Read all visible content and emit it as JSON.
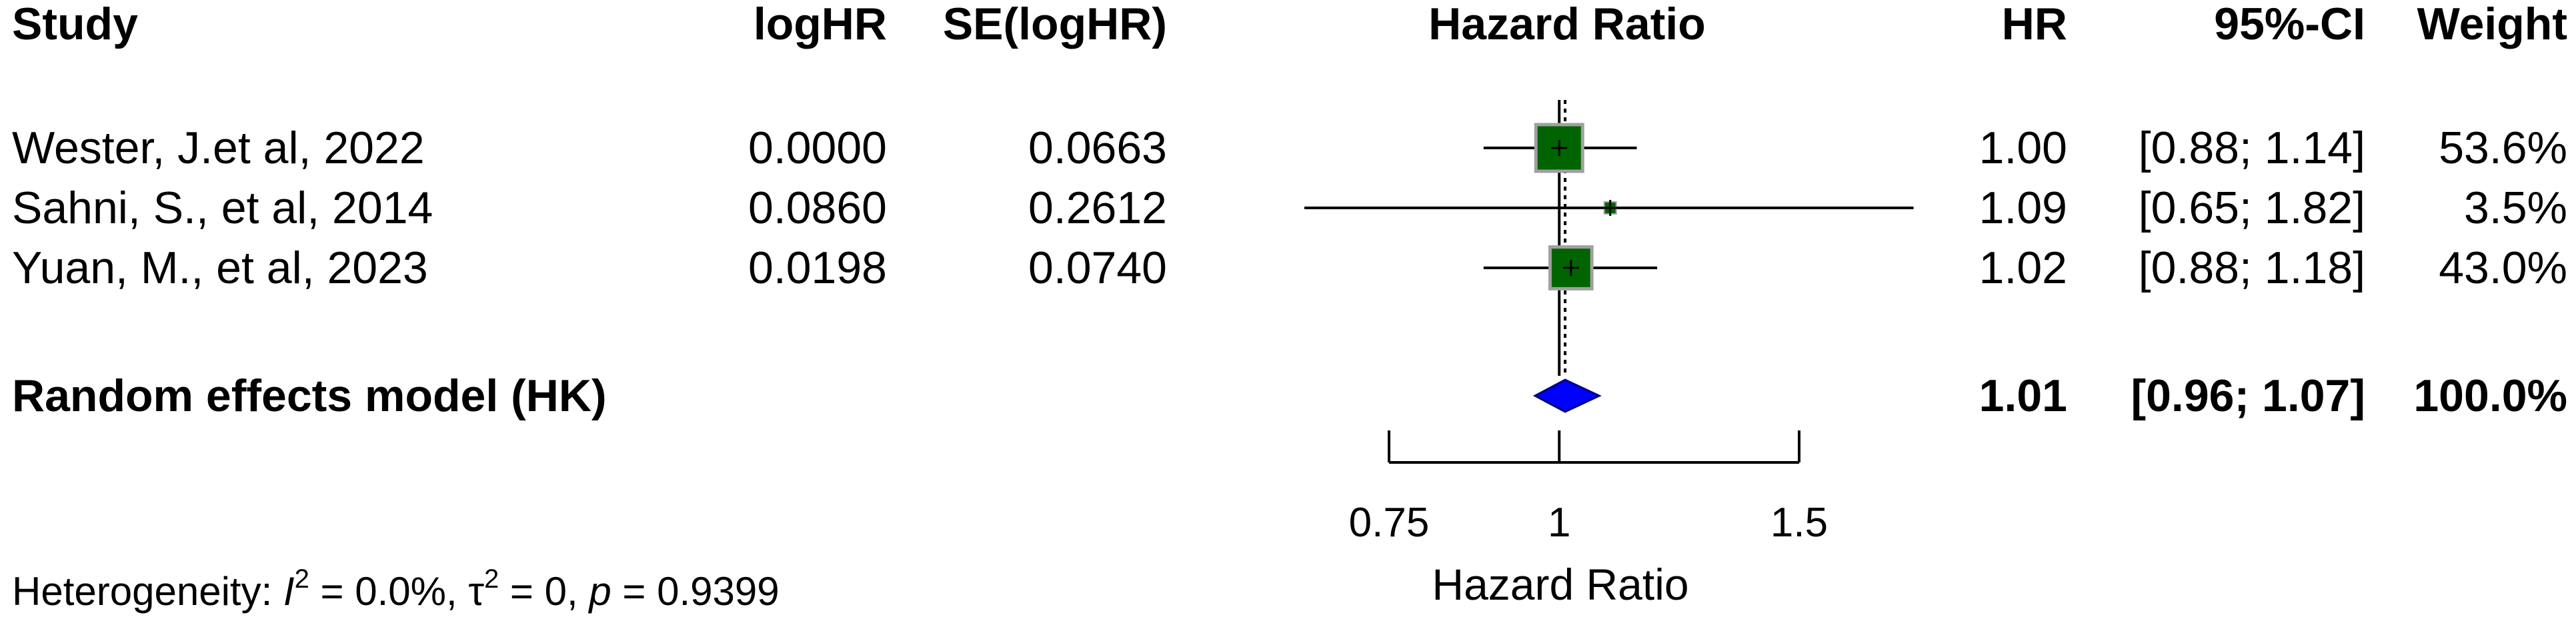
{
  "headers": {
    "study": "Study",
    "loghr": "logHR",
    "se": "SE(logHR)",
    "plot": "Hazard Ratio",
    "hr": "HR",
    "ci": "95%-CI",
    "weight": "Weight"
  },
  "studies": [
    {
      "name": "Wester, J.et al, 2022",
      "loghr": "0.0000",
      "se": "0.0663",
      "hr_text": "1.00",
      "ci_text": "[0.88; 1.14]",
      "weight_text": "53.6%"
    },
    {
      "name": "Sahni, S., et al, 2014",
      "loghr": "0.0860",
      "se": "0.2612",
      "hr_text": "1.09",
      "ci_text": "[0.65; 1.82]",
      "weight_text": "3.5%"
    },
    {
      "name": "Yuan, M., et al, 2023",
      "loghr": "0.0198",
      "se": "0.0740",
      "hr_text": "1.02",
      "ci_text": "[0.88; 1.18]",
      "weight_text": "43.0%"
    }
  ],
  "summary": {
    "label": "Random effects model (HK)",
    "hr_text": "1.01",
    "ci_text": "[0.96; 1.07]",
    "weight_text": "100.0%"
  },
  "heterogeneity": {
    "prefix": "Heterogeneity: ",
    "i2_sym": "I",
    "i2_exp": "2",
    "i2_val": " = 0.0%, ",
    "tau_sym": "τ",
    "tau_exp": "2",
    "tau_val": " = 0, ",
    "p_sym": "p",
    "p_val": " = 0.9399"
  },
  "chart_data": {
    "type": "forest",
    "xlabel": "Hazard Ratio",
    "x_scale": "log",
    "xlim": [
      0.75,
      1.5
    ],
    "ticks": [
      0.75,
      1,
      1.5
    ],
    "tick_labels": [
      "0.75",
      "1",
      "1.5"
    ],
    "reference_line": 1,
    "summary_line": 1.01,
    "studies": [
      {
        "name": "Wester, J.et al, 2022",
        "hr": 1.0,
        "lower": 0.88,
        "upper": 1.14,
        "weight": 53.6
      },
      {
        "name": "Sahni, S., et al, 2014",
        "hr": 1.09,
        "lower": 0.65,
        "upper": 1.82,
        "weight": 3.5
      },
      {
        "name": "Yuan, M., et al, 2023",
        "hr": 1.02,
        "lower": 0.88,
        "upper": 1.18,
        "weight": 43.0
      }
    ],
    "summary": {
      "hr": 1.01,
      "lower": 0.96,
      "upper": 1.07
    },
    "colors": {
      "square": "#006400",
      "square_border": "#a0a0a0",
      "diamond": "#0000ff",
      "line": "#000000"
    }
  }
}
